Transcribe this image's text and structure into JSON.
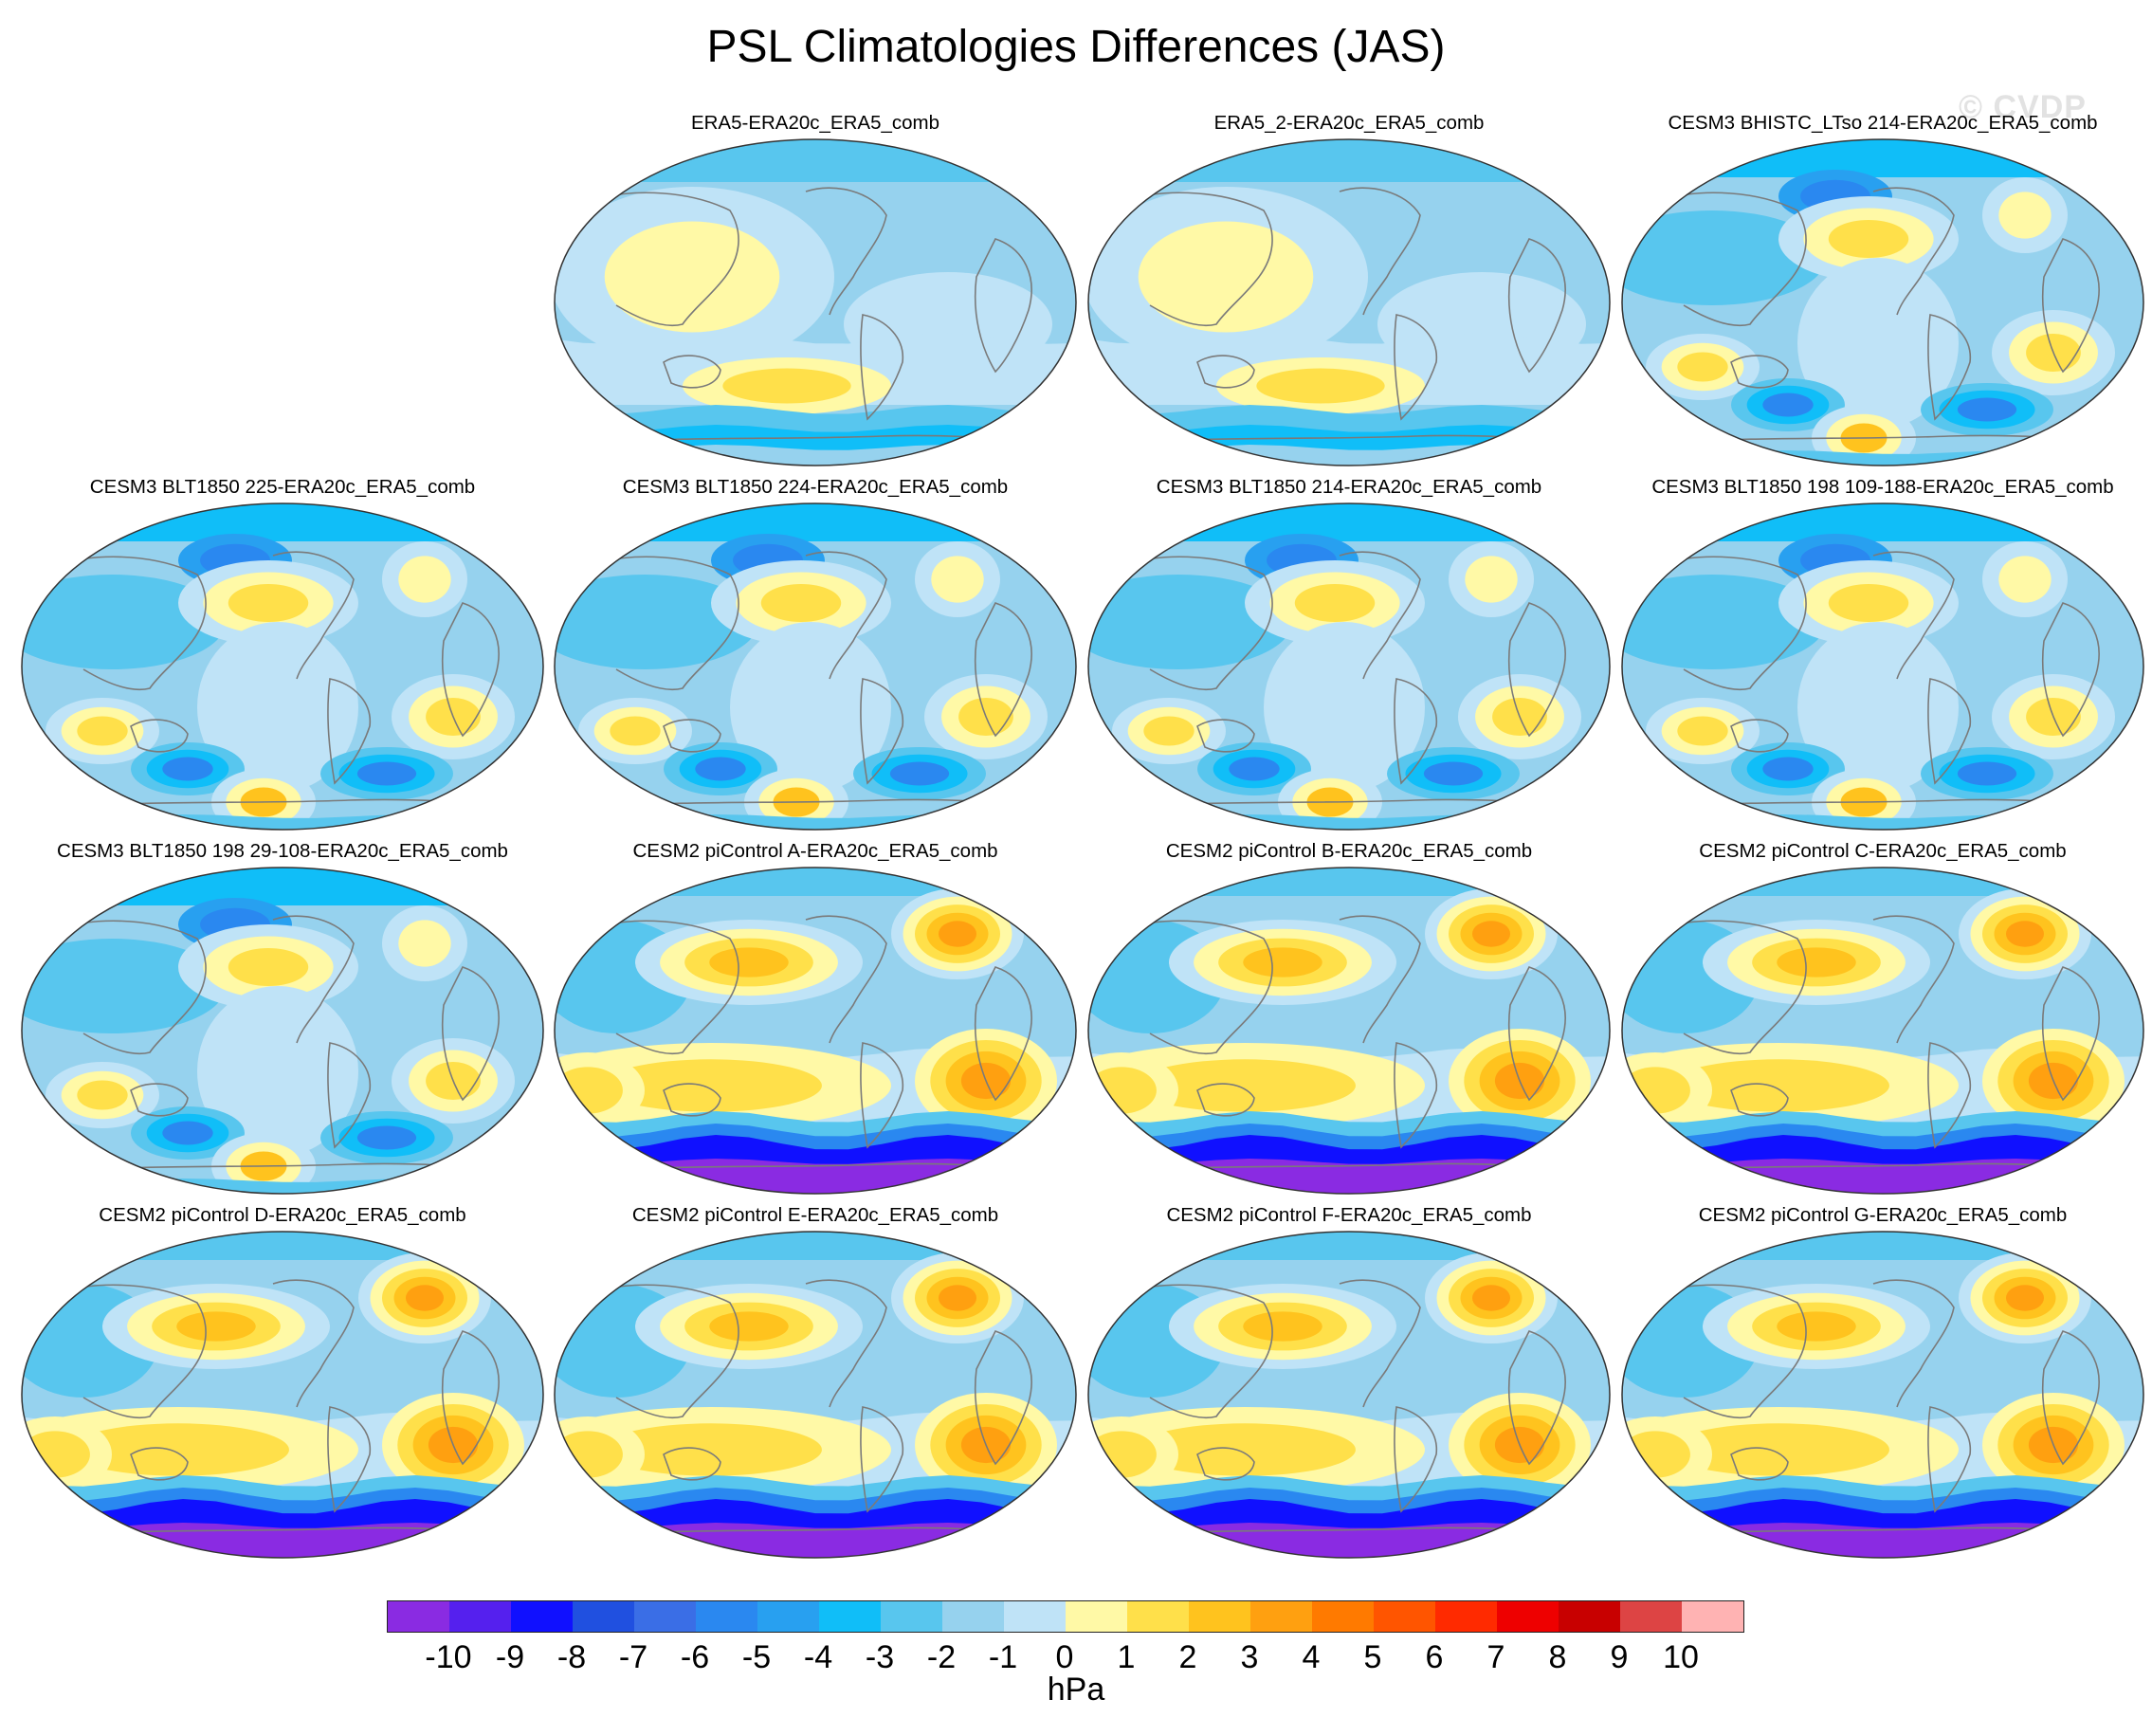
{
  "title": "PSL Climatologies Differences (JAS)",
  "watermark": "© CVDP",
  "colorbar": {
    "units": "hPa",
    "colors": [
      "#8a2be2",
      "#5520ee",
      "#1010ff",
      "#2050e0",
      "#3a6ee6",
      "#2a88f0",
      "#28a0f0",
      "#10bef8",
      "#58c6ee",
      "#96d2ee",
      "#bfe3f7",
      "#fff9a6",
      "#ffe04a",
      "#ffc31e",
      "#ffa010",
      "#ff7a00",
      "#ff5500",
      "#ff2a00",
      "#ee0000",
      "#c80000",
      "#dd4444",
      "#ffb3b3"
    ],
    "ticks": [
      "-10",
      "-9",
      "-8",
      "-7",
      "-6",
      "-5",
      "-4",
      "-3",
      "-2",
      "-1",
      "0",
      "1",
      "2",
      "3",
      "4",
      "5",
      "6",
      "7",
      "8",
      "9",
      "10"
    ]
  },
  "panels": [
    {
      "title": "ERA5-ERA20c_ERA5_comb",
      "style": "era"
    },
    {
      "title": "ERA5_2-ERA20c_ERA5_comb",
      "style": "era"
    },
    {
      "title": "CESM3 BHISTC_LTso 214-ERA20c_ERA5_comb",
      "style": "cesm3"
    },
    {
      "title": "CESM3 BLT1850 225-ERA20c_ERA5_comb",
      "style": "cesm3"
    },
    {
      "title": "CESM3 BLT1850 224-ERA20c_ERA5_comb",
      "style": "cesm3"
    },
    {
      "title": "CESM3 BLT1850 214-ERA20c_ERA5_comb",
      "style": "cesm3"
    },
    {
      "title": "CESM3 BLT1850 198 109-188-ERA20c_ERA5_comb",
      "style": "cesm3"
    },
    {
      "title": "CESM3 BLT1850 198 29-108-ERA20c_ERA5_comb",
      "style": "cesm3"
    },
    {
      "title": "CESM2 piControl A-ERA20c_ERA5_comb",
      "style": "cesm2"
    },
    {
      "title": "CESM2 piControl B-ERA20c_ERA5_comb",
      "style": "cesm2"
    },
    {
      "title": "CESM2 piControl C-ERA20c_ERA5_comb",
      "style": "cesm2"
    },
    {
      "title": "CESM2 piControl D-ERA20c_ERA5_comb",
      "style": "cesm2"
    },
    {
      "title": "CESM2 piControl E-ERA20c_ERA5_comb",
      "style": "cesm2"
    },
    {
      "title": "CESM2 piControl F-ERA20c_ERA5_comb",
      "style": "cesm2"
    },
    {
      "title": "CESM2 piControl G-ERA20c_ERA5_comb",
      "style": "cesm2"
    }
  ]
}
